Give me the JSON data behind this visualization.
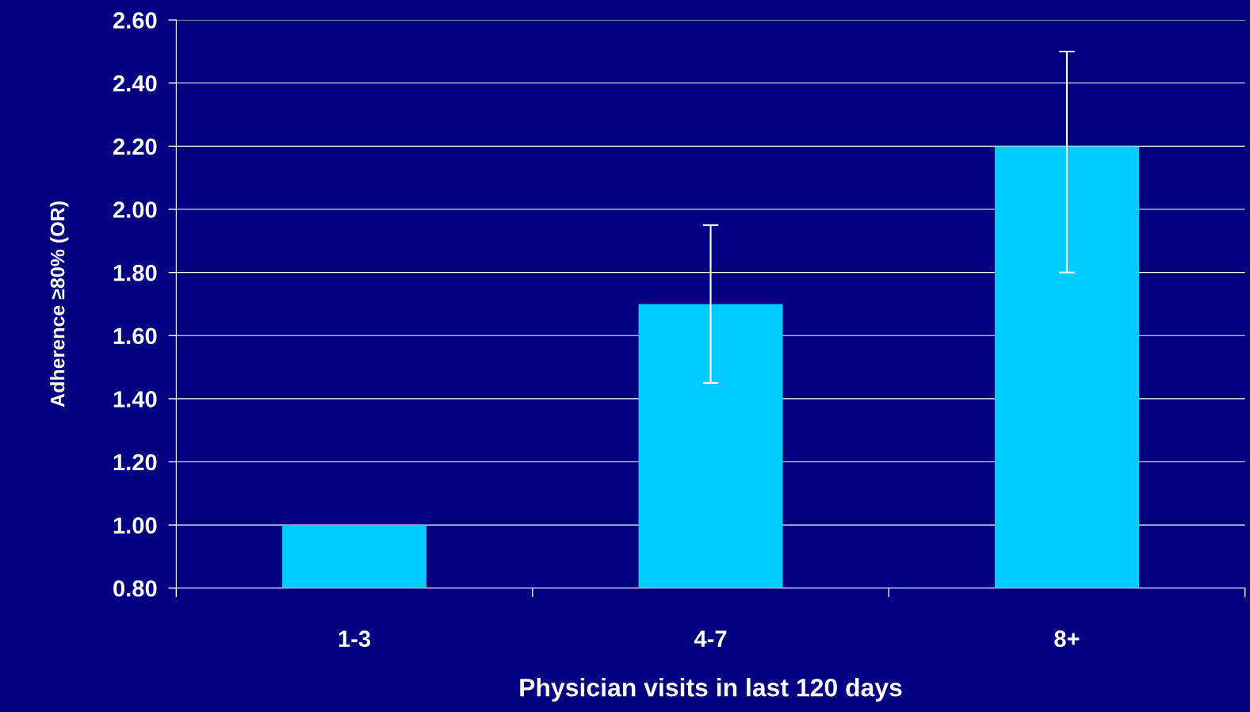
{
  "chart_data": {
    "type": "bar",
    "xlabel": "Physician visits in last 120 days",
    "ylabel": "Adherence ≥80% (OR)",
    "categories": [
      "1-3",
      "4-7",
      "8+"
    ],
    "values": [
      1.0,
      1.7,
      2.2
    ],
    "errors": [
      null,
      [
        1.45,
        1.95
      ],
      [
        1.8,
        2.5
      ]
    ],
    "color": "#00ccff",
    "ylim": [
      0.8,
      2.6
    ],
    "yticks": [
      {
        "value": 0.8,
        "label": "0.80"
      },
      {
        "value": 1.0,
        "label": "1.00"
      },
      {
        "value": 1.2,
        "label": "1.20"
      },
      {
        "value": 1.4,
        "label": "1.40"
      },
      {
        "value": 1.6,
        "label": "1.60"
      },
      {
        "value": 1.8,
        "label": "1.80"
      },
      {
        "value": 2.0,
        "label": "2.00"
      },
      {
        "value": 2.2,
        "label": "2.20"
      },
      {
        "value": 2.4,
        "label": "2.40"
      },
      {
        "value": 2.6,
        "label": "2.60"
      }
    ],
    "grid": "y"
  }
}
